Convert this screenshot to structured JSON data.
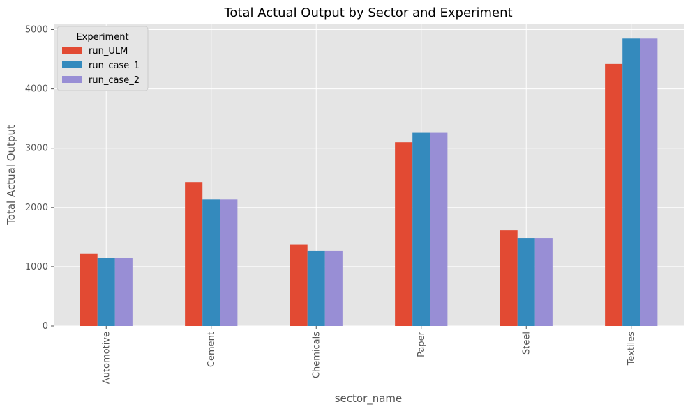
{
  "chart_data": {
    "type": "bar",
    "title": "Total Actual Output by Sector and Experiment",
    "xlabel": "sector_name",
    "ylabel": "Total Actual Output",
    "categories": [
      "Automotive",
      "Cement",
      "Chemicals",
      "Paper",
      "Steel",
      "Textiles"
    ],
    "series": [
      {
        "name": "run_ULM",
        "values": [
          1225,
          2430,
          1380,
          3100,
          1620,
          4420
        ],
        "color": "#e24a33"
      },
      {
        "name": "run_case_1",
        "values": [
          1150,
          2135,
          1270,
          3260,
          1480,
          4850
        ],
        "color": "#348abd"
      },
      {
        "name": "run_case_2",
        "values": [
          1150,
          2135,
          1270,
          3260,
          1480,
          4850
        ],
        "color": "#988ed5"
      }
    ],
    "yticks": [
      0,
      1000,
      2000,
      3000,
      4000,
      5000
    ],
    "ylim": [
      0,
      5100
    ],
    "grid": true,
    "legend_title": "Experiment",
    "legend_position": "top-left",
    "background": "#e5e5e5"
  }
}
